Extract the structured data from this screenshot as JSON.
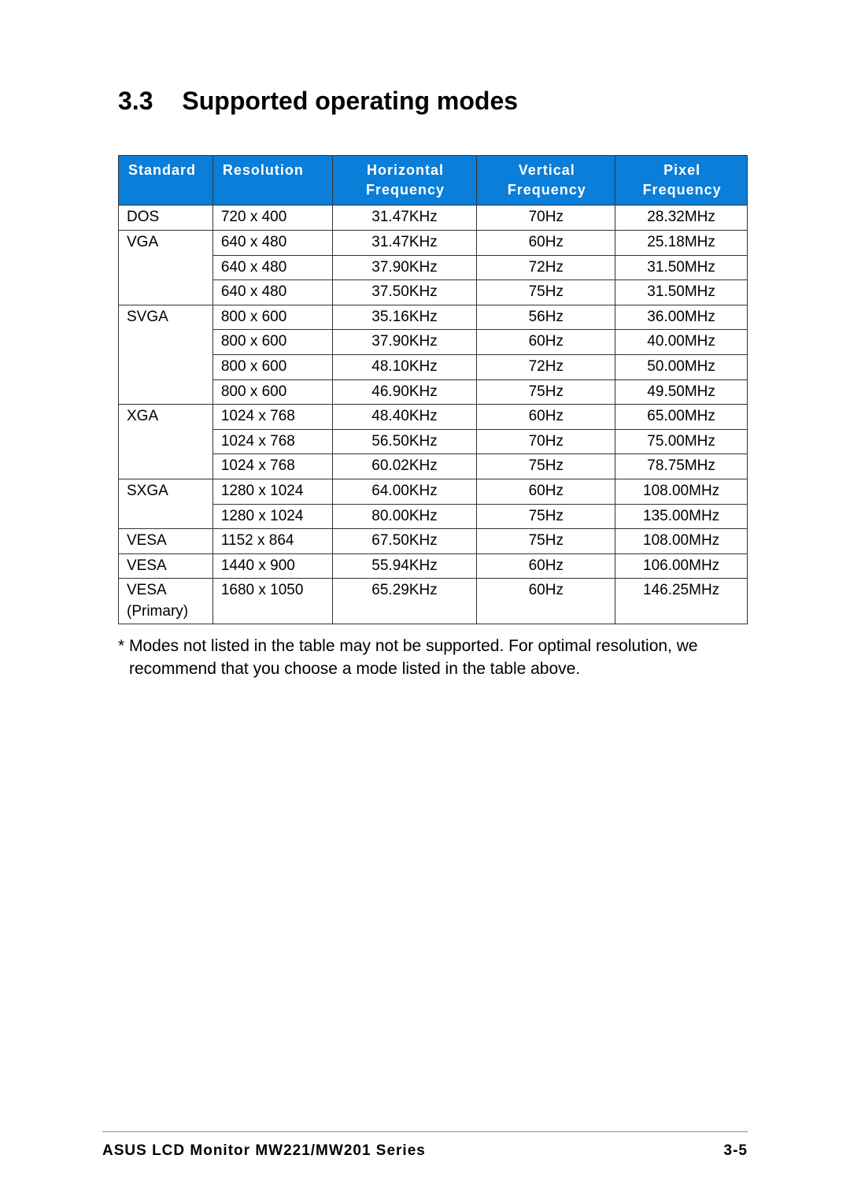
{
  "heading": {
    "number": "3.3",
    "title": "Supported operating modes"
  },
  "table": {
    "header_bg": "#0a7ed8",
    "header_fg": "#ffffff",
    "border_color": "#333333",
    "columns": [
      {
        "label": "Standard",
        "align": "left"
      },
      {
        "label": "Resolution",
        "align": "left"
      },
      {
        "label": "Horizontal Frequency",
        "align": "center"
      },
      {
        "label": "Vertical Frequency",
        "align": "center"
      },
      {
        "label": "Pixel Frequency",
        "align": "center"
      }
    ],
    "groups": [
      {
        "standard": "DOS",
        "rows": [
          {
            "res": "720 x 400",
            "h": "31.47KHz",
            "v": "70Hz",
            "p": "28.32MHz"
          }
        ]
      },
      {
        "standard": "VGA",
        "rows": [
          {
            "res": "640 x 480",
            "h": "31.47KHz",
            "v": "60Hz",
            "p": "25.18MHz"
          },
          {
            "res": "640 x 480",
            "h": "37.90KHz",
            "v": "72Hz",
            "p": "31.50MHz"
          },
          {
            "res": "640 x 480",
            "h": "37.50KHz",
            "v": "75Hz",
            "p": "31.50MHz"
          }
        ]
      },
      {
        "standard": "SVGA",
        "rows": [
          {
            "res": "800 x 600",
            "h": "35.16KHz",
            "v": "56Hz",
            "p": "36.00MHz"
          },
          {
            "res": "800 x 600",
            "h": "37.90KHz",
            "v": "60Hz",
            "p": "40.00MHz"
          },
          {
            "res": "800 x 600",
            "h": "48.10KHz",
            "v": "72Hz",
            "p": "50.00MHz"
          },
          {
            "res": "800 x 600",
            "h": "46.90KHz",
            "v": "75Hz",
            "p": "49.50MHz"
          }
        ]
      },
      {
        "standard": "XGA",
        "rows": [
          {
            "res": "1024 x 768",
            "h": "48.40KHz",
            "v": "60Hz",
            "p": "65.00MHz"
          },
          {
            "res": "1024 x 768",
            "h": "56.50KHz",
            "v": "70Hz",
            "p": "75.00MHz"
          },
          {
            "res": "1024 x 768",
            "h": "60.02KHz",
            "v": "75Hz",
            "p": "78.75MHz"
          }
        ]
      },
      {
        "standard": "SXGA",
        "rows": [
          {
            "res": "1280 x 1024",
            "h": "64.00KHz",
            "v": "60Hz",
            "p": "108.00MHz"
          },
          {
            "res": "1280 x 1024",
            "h": "80.00KHz",
            "v": "75Hz",
            "p": "135.00MHz"
          }
        ]
      },
      {
        "standard": "VESA",
        "rows": [
          {
            "res": "1152 x 864",
            "h": "67.50KHz",
            "v": "75Hz",
            "p": "108.00MHz"
          }
        ]
      },
      {
        "standard": "VESA",
        "rows": [
          {
            "res": "1440 x 900",
            "h": "55.94KHz",
            "v": "60Hz",
            "p": "106.00MHz"
          }
        ]
      },
      {
        "standard": "VESA (Primary)",
        "rows": [
          {
            "res": "1680 x 1050",
            "h": "65.29KHz",
            "v": "60Hz",
            "p": "146.25MHz"
          }
        ]
      }
    ]
  },
  "note": "* Modes not listed in the table may not be supported. For optimal resolution, we recommend that you choose a mode listed in the table above.",
  "footer": {
    "left": "ASUS LCD Monitor MW221/MW201 Series",
    "right": "3-5"
  }
}
